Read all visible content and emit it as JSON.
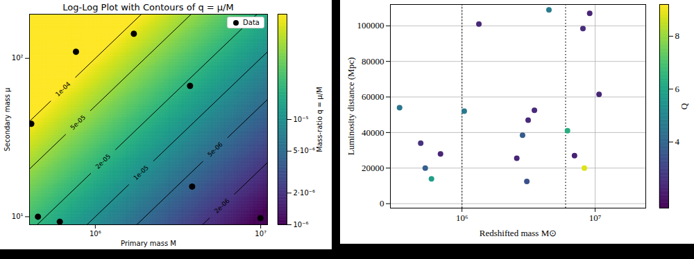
{
  "chart_data": [
    {
      "type": "scatter",
      "title": "Log-Log Plot with Contours of q = μ/M",
      "x_label": "Primary mass M",
      "y_label": "Secondary mass μ",
      "log": true,
      "xlim": [
        400000,
        11000000
      ],
      "ylim": [
        8.9,
        190
      ],
      "xticks": [
        {
          "value": 1000000,
          "label": "10⁶"
        },
        {
          "value": 10000000,
          "label": "10⁷"
        }
      ],
      "yticks": [
        {
          "value": 10,
          "label": "10¹"
        },
        {
          "value": 100,
          "label": "10²"
        }
      ],
      "x": [
        410000,
        764000,
        1710000,
        3740000,
        3850000,
        450000,
        610000,
        9970000
      ],
      "series": [
        {
          "name": "Data",
          "color": "#000000",
          "marker": "circle",
          "values": [
            38.6,
            110,
            143,
            67,
            15.5,
            10,
            9.3,
            9.8
          ]
        }
      ],
      "legend": "upper right",
      "contours": [
        {
          "value": 0.0001,
          "label": "1e-04"
        },
        {
          "value": 5e-05,
          "label": "5e-05"
        },
        {
          "value": 2e-05,
          "label": "2e-05"
        },
        {
          "value": 1e-05,
          "label": "1e-05"
        },
        {
          "value": 5e-06,
          "label": "5e-06"
        },
        {
          "value": 2e-06,
          "label": "2e-06"
        }
      ],
      "colorbar": {
        "label": "Mass-ratio q = μ/M",
        "range": [
          1e-06,
          0.0001
        ],
        "ticks": [
          {
            "value": 1e-06,
            "label": "10⁻⁶"
          },
          {
            "value": 2e-06,
            "label": "2·10⁻⁶"
          },
          {
            "value": 5e-06,
            "label": "5·10⁻⁶"
          },
          {
            "value": 1e-05,
            "label": "10⁻⁵"
          }
        ]
      }
    },
    {
      "type": "scatter",
      "x_label": "Redshifted mass M⊙",
      "y_label": "Luminosity distance (Mpc)",
      "log": "x",
      "grid": true,
      "xlim": [
        290000,
        24000000
      ],
      "ylim": [
        -2500,
        112000
      ],
      "xticks": [
        {
          "value": 1000000,
          "label": "10⁶"
        },
        {
          "value": 10000000,
          "label": "10⁷"
        }
      ],
      "yticks": [
        0,
        20000,
        40000,
        60000,
        80000,
        100000
      ],
      "x": [
        340000,
        490000,
        530000,
        590000,
        690000,
        1040000,
        1340000,
        2580000,
        2850000,
        3070000,
        3140000,
        3500000,
        4500000,
        6200000,
        7000000,
        8100000,
        9100000,
        8300000,
        10700000
      ],
      "values": [
        54000,
        34000,
        20000,
        14000,
        28000,
        52000,
        101000,
        25500,
        38500,
        12500,
        47000,
        52500,
        109000,
        41000,
        27000,
        98500,
        107000,
        20000,
        61500
      ],
      "color_values": [
        4.5,
        2.6,
        3.8,
        5.8,
        2.3,
        4.6,
        2.4,
        2.3,
        3.7,
        3.4,
        2.4,
        2.4,
        4.7,
        6.3,
        2.2,
        2.5,
        2.3,
        8.8,
        2.3
      ],
      "colorbar": {
        "label": "Q",
        "range": [
          1.5,
          9.2
        ],
        "ticks": [
          4,
          6,
          8
        ]
      },
      "vlines": {
        "values": [
          1000000,
          6000000
        ],
        "line_style": "dotted",
        "color": "#000000"
      }
    }
  ]
}
